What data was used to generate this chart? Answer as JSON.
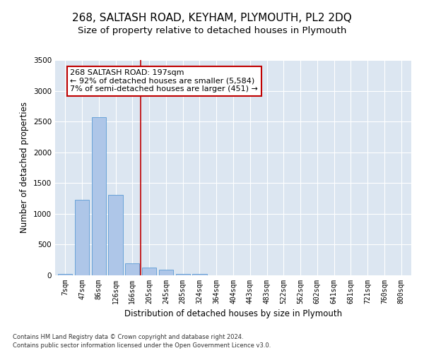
{
  "title": "268, SALTASH ROAD, KEYHAM, PLYMOUTH, PL2 2DQ",
  "subtitle": "Size of property relative to detached houses in Plymouth",
  "xlabel": "Distribution of detached houses by size in Plymouth",
  "ylabel": "Number of detached properties",
  "categories": [
    "7sqm",
    "47sqm",
    "86sqm",
    "126sqm",
    "166sqm",
    "205sqm",
    "245sqm",
    "285sqm",
    "324sqm",
    "364sqm",
    "404sqm",
    "443sqm",
    "483sqm",
    "522sqm",
    "562sqm",
    "602sqm",
    "641sqm",
    "681sqm",
    "721sqm",
    "760sqm",
    "800sqm"
  ],
  "values": [
    27,
    1230,
    2570,
    1310,
    195,
    130,
    95,
    27,
    27,
    0,
    0,
    0,
    0,
    0,
    0,
    0,
    0,
    0,
    0,
    0,
    0
  ],
  "bar_color": "#aec6e8",
  "bar_edge_color": "#5b9bd5",
  "background_color": "#dce6f1",
  "vline_x": 4.5,
  "vline_color": "#c00000",
  "annotation_line1": "268 SALTASH ROAD: 197sqm",
  "annotation_line2": "← 92% of detached houses are smaller (5,584)",
  "annotation_line3": "7% of semi-detached houses are larger (451) →",
  "annotation_box_color": "#ffffff",
  "annotation_box_edge": "#c00000",
  "ylim": [
    0,
    3500
  ],
  "yticks": [
    0,
    500,
    1000,
    1500,
    2000,
    2500,
    3000,
    3500
  ],
  "footer_line1": "Contains HM Land Registry data © Crown copyright and database right 2024.",
  "footer_line2": "Contains public sector information licensed under the Open Government Licence v3.0.",
  "title_fontsize": 11,
  "subtitle_fontsize": 9.5,
  "tick_fontsize": 7,
  "ylabel_fontsize": 8.5,
  "xlabel_fontsize": 8.5,
  "annotation_fontsize": 8,
  "footer_fontsize": 6
}
